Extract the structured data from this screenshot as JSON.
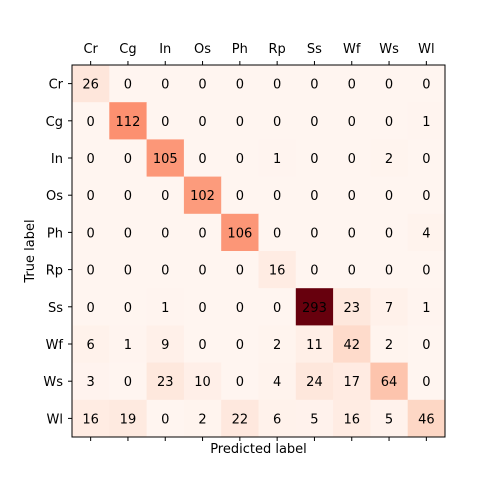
{
  "chart_data": {
    "type": "heatmap",
    "title": "",
    "xlabel": "Predicted label",
    "ylabel": "True label",
    "x_categories": [
      "Cr",
      "Cg",
      "In",
      "Os",
      "Ph",
      "Rp",
      "Ss",
      "Wf",
      "Ws",
      "Wl"
    ],
    "y_categories": [
      "Cr",
      "Cg",
      "In",
      "Os",
      "Ph",
      "Rp",
      "Ss",
      "Wf",
      "Ws",
      "Wl"
    ],
    "values": [
      [
        26,
        0,
        0,
        0,
        0,
        0,
        0,
        0,
        0,
        0
      ],
      [
        0,
        112,
        0,
        0,
        0,
        0,
        0,
        0,
        0,
        1
      ],
      [
        0,
        0,
        105,
        0,
        0,
        1,
        0,
        0,
        2,
        0
      ],
      [
        0,
        0,
        0,
        102,
        0,
        0,
        0,
        0,
        0,
        0
      ],
      [
        0,
        0,
        0,
        0,
        106,
        0,
        0,
        0,
        0,
        4
      ],
      [
        0,
        0,
        0,
        0,
        0,
        16,
        0,
        0,
        0,
        0
      ],
      [
        0,
        0,
        1,
        0,
        0,
        0,
        293,
        23,
        7,
        1
      ],
      [
        6,
        1,
        9,
        0,
        0,
        2,
        11,
        42,
        2,
        0
      ],
      [
        3,
        0,
        23,
        10,
        0,
        4,
        24,
        17,
        64,
        0
      ],
      [
        16,
        19,
        0,
        2,
        22,
        6,
        5,
        16,
        5,
        46
      ]
    ],
    "colormap": "Reds",
    "x_tick_position": "top",
    "grid": false,
    "legend": "none"
  }
}
